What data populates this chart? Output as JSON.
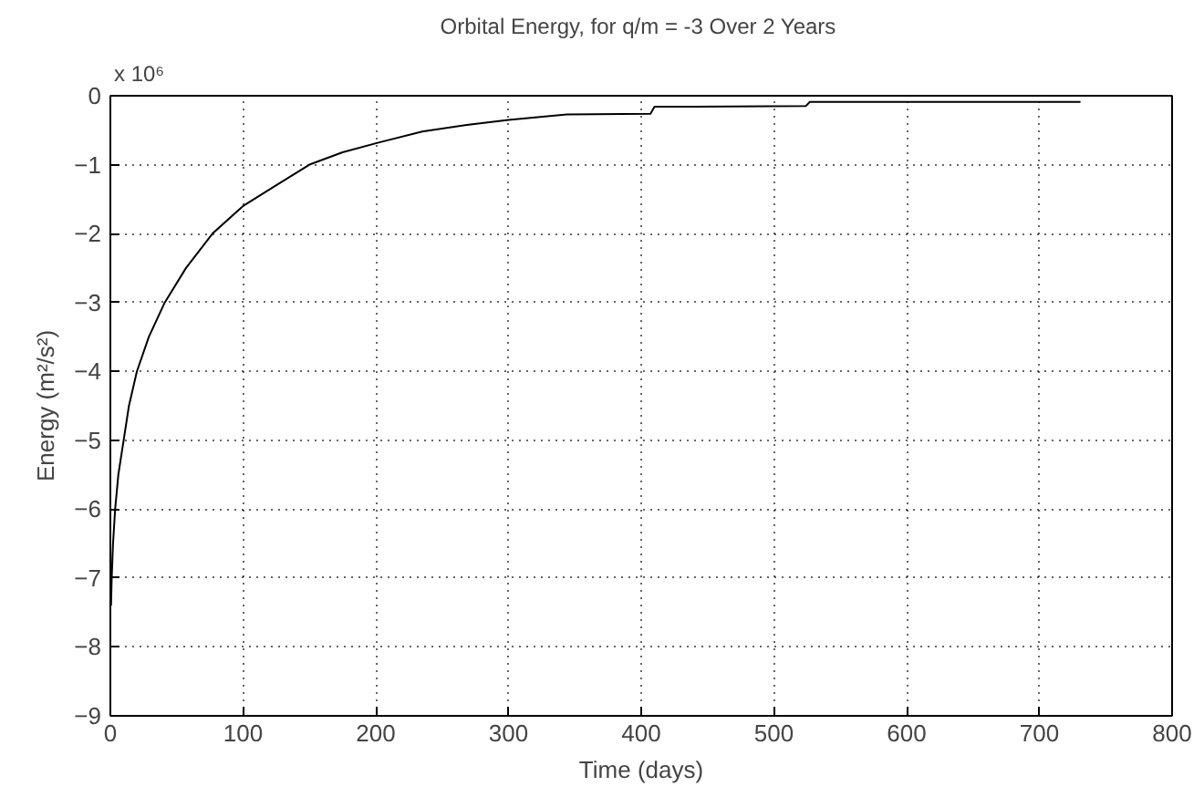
{
  "chart_data": {
    "type": "line",
    "title": "Orbital Energy, for q/m = -3  Over 2 Years",
    "xlabel": "Time (days)",
    "ylabel": "Energy (m²/s²)",
    "annotations": [
      "x 10⁶"
    ],
    "x": [
      0.5,
      1,
      2,
      3.6,
      6,
      10,
      14,
      20,
      29,
      41,
      57,
      77,
      100,
      125,
      150,
      175,
      202,
      235,
      270,
      300,
      344,
      407,
      410,
      524,
      527,
      731
    ],
    "series": [
      {
        "color": "#000000",
        "values": [
          -7.4,
          -7.0,
          -6.5,
          -6.0,
          -5.5,
          -5.0,
          -4.5,
          -4.0,
          -3.5,
          -3.0,
          -2.5,
          -2.0,
          -1.6,
          -1.3,
          -1.0,
          -0.82,
          -0.68,
          -0.52,
          -0.42,
          -0.35,
          -0.27,
          -0.26,
          -0.16,
          -0.15,
          -0.09,
          -0.09
        ]
      }
    ],
    "xlim": [
      0,
      800
    ],
    "xticks": [
      0,
      100,
      200,
      300,
      400,
      500,
      600,
      700,
      800
    ],
    "ylim": [
      -9,
      0
    ],
    "yticks": [
      -9,
      -8,
      -7,
      -6,
      -5,
      -4,
      -3,
      -2,
      -1,
      0
    ],
    "grid": true,
    "line_style": "solid"
  }
}
